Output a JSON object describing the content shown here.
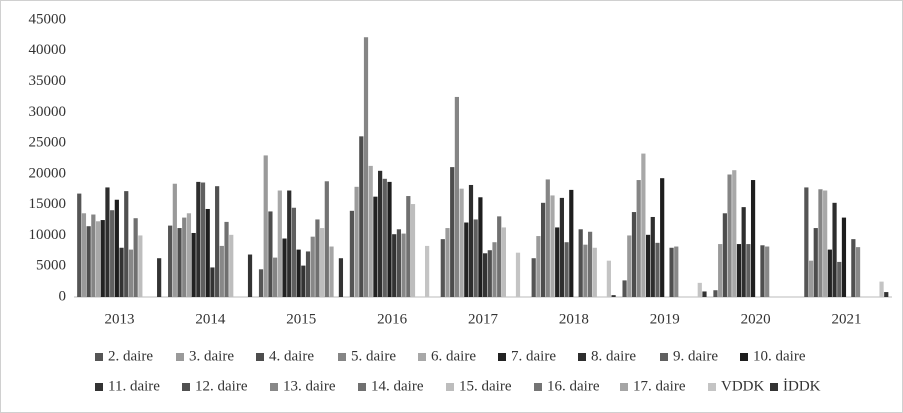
{
  "chart_data": {
    "type": "bar",
    "categories": [
      "2013",
      "2014",
      "2015",
      "2016",
      "2017",
      "2018",
      "2019",
      "2020",
      "2021"
    ],
    "ylim": [
      0,
      45000
    ],
    "yticks": [
      0,
      5000,
      10000,
      15000,
      20000,
      25000,
      30000,
      35000,
      40000,
      45000
    ],
    "grid": false,
    "legend": "bottom",
    "series": [
      {
        "name": "2. daire",
        "color": "#555555",
        "values": [
          16800,
          11600,
          4500,
          14000,
          9400,
          6300,
          2700,
          1100,
          17800
        ]
      },
      {
        "name": "3. daire",
        "color": "#9a9a9a",
        "values": [
          13600,
          18400,
          23000,
          17900,
          11200,
          9900,
          10000,
          8600,
          5900
        ]
      },
      {
        "name": "4. daire",
        "color": "#4d4d4d",
        "values": [
          11500,
          11200,
          13900,
          26100,
          21100,
          15300,
          13800,
          13600,
          11200
        ]
      },
      {
        "name": "5. daire",
        "color": "#858585",
        "values": [
          13400,
          12900,
          6400,
          42200,
          32500,
          19100,
          19000,
          19900,
          17500
        ]
      },
      {
        "name": "6. daire",
        "color": "#a8a8a8",
        "values": [
          12300,
          13600,
          17300,
          21300,
          17600,
          16500,
          23300,
          20600,
          17300
        ]
      },
      {
        "name": "7. daire",
        "color": "#222222",
        "values": [
          12500,
          10400,
          9500,
          16300,
          12100,
          11300,
          10100,
          8600,
          7700
        ]
      },
      {
        "name": "8. daire",
        "color": "#2e2e2e",
        "values": [
          17800,
          18700,
          17300,
          20500,
          18200,
          16100,
          13000,
          14600,
          15300
        ]
      },
      {
        "name": "9. daire",
        "color": "#606060",
        "values": [
          14100,
          18600,
          14500,
          19200,
          12600,
          8900,
          8800,
          8600,
          5700
        ]
      },
      {
        "name": "10. daire",
        "color": "#1e1e1e",
        "values": [
          15800,
          14300,
          7700,
          18700,
          16200,
          17400,
          19300,
          19000,
          12900
        ]
      },
      {
        "name": "11. daire",
        "color": "#333333",
        "values": [
          8000,
          4800,
          5100,
          10200,
          7100,
          0,
          0,
          0,
          0
        ]
      },
      {
        "name": "12. daire",
        "color": "#505050",
        "values": [
          17200,
          18000,
          7400,
          11000,
          7600,
          11000,
          8000,
          8400,
          9400
        ]
      },
      {
        "name": "13. daire",
        "color": "#888888",
        "values": [
          7700,
          8300,
          9800,
          10300,
          8900,
          8500,
          8200,
          8200,
          8100
        ]
      },
      {
        "name": "14. daire",
        "color": "#707070",
        "values": [
          12800,
          12200,
          12600,
          16400,
          13100,
          10600,
          0,
          0,
          0
        ]
      },
      {
        "name": "15. daire",
        "color": "#bdbdbd",
        "values": [
          10000,
          10100,
          11200,
          15100,
          11300,
          8000,
          0,
          0,
          0
        ]
      },
      {
        "name": "16. daire",
        "color": "#747474",
        "values": [
          0,
          0,
          18800,
          0,
          0,
          0,
          0,
          0,
          0
        ]
      },
      {
        "name": "17. daire",
        "color": "#a5a5a5",
        "values": [
          0,
          0,
          8200,
          0,
          0,
          0,
          0,
          0,
          0
        ]
      },
      {
        "name": "VDDK",
        "color": "#c4c4c4",
        "values": [
          0,
          0,
          0,
          8300,
          7200,
          5900,
          2300,
          0,
          2500
        ]
      },
      {
        "name": "İDDK",
        "color": "#333333",
        "values": [
          6300,
          6900,
          6300,
          0,
          0,
          300,
          900,
          0,
          800
        ]
      }
    ]
  }
}
